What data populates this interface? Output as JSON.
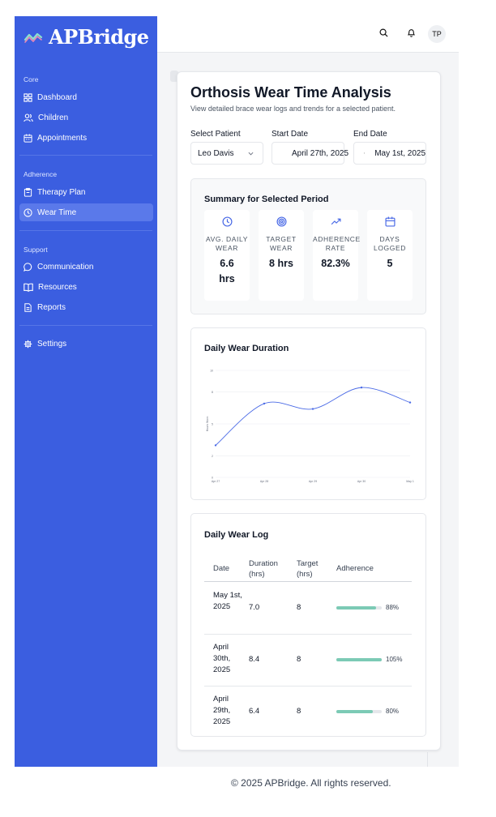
{
  "app": {
    "brand": "APBridge",
    "user_initials": "TP"
  },
  "sidebar": {
    "sections": [
      {
        "title": "Core",
        "items": [
          {
            "label": "Dashboard",
            "icon": "dashboard-icon"
          },
          {
            "label": "Children",
            "icon": "users-icon"
          },
          {
            "label": "Appointments",
            "icon": "calendar-icon"
          }
        ]
      },
      {
        "title": "Adherence",
        "items": [
          {
            "label": "Therapy Plan",
            "icon": "clipboard-icon"
          },
          {
            "label": "Wear Time",
            "icon": "clock-icon",
            "active": true
          }
        ]
      },
      {
        "title": "Support",
        "items": [
          {
            "label": "Communication",
            "icon": "chat-icon"
          },
          {
            "label": "Resources",
            "icon": "book-icon"
          },
          {
            "label": "Reports",
            "icon": "report-icon"
          }
        ]
      },
      {
        "title": "",
        "items": [
          {
            "label": "Settings",
            "icon": "gear-icon"
          }
        ]
      }
    ]
  },
  "page": {
    "title": "Orthosis Wear Time Analysis",
    "subtitle": "View detailed brace wear logs and trends for a selected patient."
  },
  "filters": {
    "patient_label": "Select Patient",
    "patient_value": "Leo Davis",
    "start_label": "Start Date",
    "start_value": "April 27th, 2025",
    "end_label": "End Date",
    "end_value": "May 1st, 2025"
  },
  "summary": {
    "title": "Summary for Selected Period",
    "stats": [
      {
        "label": "AVG. DAILY WEAR",
        "value": "6.6 hrs",
        "icon": "clock-icon"
      },
      {
        "label": "TARGET WEAR",
        "value": "8 hrs",
        "icon": "target-icon"
      },
      {
        "label": "ADHERENCE RATE",
        "value": "82.3%",
        "icon": "trend-up-icon"
      },
      {
        "label": "DAYS LOGGED",
        "value": "5",
        "icon": "calendar-icon"
      }
    ]
  },
  "chart_data": {
    "type": "line",
    "title": "Daily Wear Duration",
    "ylabel": "Hours Worn",
    "xlabel": "",
    "categories": [
      "Apr 27",
      "Apr 28",
      "Apr 29",
      "Apr 30",
      "May 1"
    ],
    "series": [
      {
        "values": [
          3.0,
          6.9,
          6.4,
          8.4,
          7.0
        ]
      }
    ],
    "ylim": [
      0,
      10
    ],
    "yticks": [
      0,
      2,
      5,
      8,
      10
    ],
    "grid": true,
    "color": "#4a6ae6"
  },
  "log": {
    "title": "Daily Wear Log",
    "headers": {
      "date": "Date",
      "duration": "Duration (hrs)",
      "target": "Target (hrs)",
      "adherence": "Adherence"
    },
    "rows": [
      {
        "date": "May 1st, 2025",
        "duration": "7.0",
        "target": "8",
        "adherence_pct": 88,
        "adherence": "88%"
      },
      {
        "date": "April 30th, 2025",
        "duration": "8.4",
        "target": "8",
        "adherence_pct": 105,
        "adherence": "105%"
      },
      {
        "date": "April 29th, 2025",
        "duration": "6.4",
        "target": "8",
        "adherence_pct": 80,
        "adherence": "80%"
      }
    ]
  },
  "footer": {
    "text": "© 2025 APBridge. All rights reserved."
  },
  "colors": {
    "sidebar": "#3b5ee0",
    "accent": "#4a6ae6",
    "adherence_bar": "#7ccab5"
  }
}
